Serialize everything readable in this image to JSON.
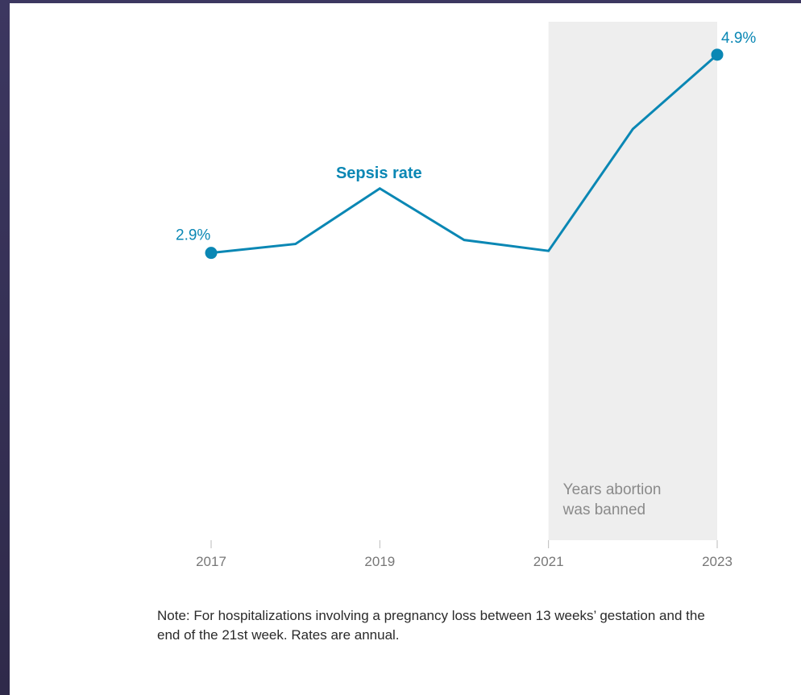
{
  "chart_data": {
    "type": "line",
    "title": "",
    "xlabel": "",
    "ylabel": "",
    "x": [
      2017,
      2018,
      2019,
      2020,
      2021,
      2022,
      2023
    ],
    "series": [
      {
        "name": "Sepsis rate",
        "values": [
          2.9,
          2.99,
          3.55,
          3.03,
          2.92,
          4.15,
          4.9
        ]
      }
    ],
    "x_tick_labels": [
      "2017",
      "2019",
      "2021",
      "2023"
    ],
    "endpoint_labels": {
      "start": "2.9%",
      "end": "4.9%"
    },
    "shaded_region": {
      "from": 2021,
      "to": 2023,
      "label_line1": "Years abortion",
      "label_line2": "was banned"
    },
    "ylim": [
      0,
      5.2
    ],
    "grid": false,
    "legend": "inline-label"
  },
  "note": "Note: For hospitalizations involving a pregnancy loss between 13 weeks’ gestation and the end of the 21st week. Rates are annual.",
  "colors": {
    "line": "#0a87b4",
    "shade": "#eeeeee",
    "axis_text": "#777777",
    "shade_text": "#8a8a8a",
    "note_text": "#2a2a2a"
  }
}
